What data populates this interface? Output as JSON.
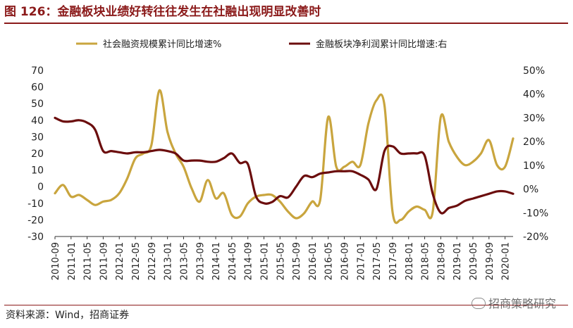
{
  "title": "图 126：金融板块业绩好转往往发生在社融出现明显改善时",
  "source": "资料来源：Wind，招商证券",
  "watermark": "招商策略研究",
  "chart_data": {
    "type": "line",
    "x": [
      "2010-09",
      "2010-11",
      "2011-01",
      "2011-03",
      "2011-05",
      "2011-07",
      "2011-09",
      "2011-11",
      "2012-01",
      "2012-03",
      "2012-05",
      "2012-07",
      "2012-09",
      "2012-11",
      "2013-01",
      "2013-03",
      "2013-05",
      "2013-07",
      "2013-09",
      "2013-11",
      "2014-01",
      "2014-03",
      "2014-05",
      "2014-07",
      "2014-09",
      "2014-11",
      "2015-01",
      "2015-03",
      "2015-05",
      "2015-07",
      "2015-09",
      "2015-11",
      "2016-01",
      "2016-03",
      "2016-05",
      "2016-07",
      "2016-09",
      "2016-11",
      "2017-01",
      "2017-03",
      "2017-05",
      "2017-07",
      "2017-09",
      "2017-11",
      "2018-01",
      "2018-03",
      "2018-05",
      "2018-07",
      "2018-09",
      "2018-11",
      "2019-01",
      "2019-03",
      "2019-05",
      "2019-07",
      "2019-09",
      "2019-11",
      "2020-01",
      "2020-03"
    ],
    "tick_labels": [
      "2010-09",
      "2011-01",
      "2011-05",
      "2011-09",
      "2012-01",
      "2012-05",
      "2012-09",
      "2013-01",
      "2013-05",
      "2013-09",
      "2014-01",
      "2014-05",
      "2014-09",
      "2015-01",
      "2015-05",
      "2015-09",
      "2016-01",
      "2016-05",
      "2016-09",
      "2017-01",
      "2017-05",
      "2017-09",
      "2018-01",
      "2018-05",
      "2018-09",
      "2019-01",
      "2019-05",
      "2019-09",
      "2020-01"
    ],
    "series": [
      {
        "name": "社会融资规模累计同比增速%",
        "axis": "left",
        "color": "#C9A53E",
        "values": [
          -4,
          1,
          -6,
          -5,
          -8,
          -11,
          -9,
          -8,
          -4,
          5,
          17,
          20,
          25,
          58,
          33,
          20,
          12,
          -1,
          -9,
          4,
          -7,
          -4,
          -17,
          -18,
          -10,
          -6,
          -5,
          -5,
          -9,
          -15,
          -19,
          -16,
          -9,
          -8,
          42,
          12,
          12,
          15,
          13,
          38,
          52,
          49,
          -15,
          -20,
          -15,
          -12,
          -14,
          -15,
          42,
          27,
          18,
          13,
          15,
          20,
          28,
          13,
          12,
          29
        ]
      },
      {
        "name": "金融板块净利润累计同比增速:右",
        "axis": "right",
        "color": "#6B0D0D",
        "values": [
          30,
          28.5,
          28.5,
          29,
          28,
          25,
          16,
          16,
          15.5,
          15,
          15.5,
          15.5,
          16,
          16.5,
          16,
          15,
          12,
          12,
          12,
          11.5,
          11.5,
          13,
          15,
          11,
          10.5,
          -3,
          -6,
          -5.5,
          -3,
          -3.5,
          1,
          5.5,
          5,
          6.5,
          7,
          7.5,
          7.5,
          7.5,
          6,
          4,
          0,
          16,
          18,
          15,
          15,
          15,
          14,
          -2,
          -10,
          -8,
          -7,
          -5,
          -4,
          -3,
          -2,
          -1,
          -1,
          -2
        ]
      }
    ],
    "left_axis": {
      "min": -30,
      "max": 70,
      "ticks": [
        -30,
        -20,
        -10,
        0,
        10,
        20,
        30,
        40,
        50,
        60,
        70
      ]
    },
    "right_axis": {
      "min": -20,
      "max": 50,
      "ticks": [
        "-20%",
        "-10%",
        "0%",
        "10%",
        "20%",
        "30%",
        "40%",
        "50%"
      ]
    },
    "legend_position": "top"
  }
}
